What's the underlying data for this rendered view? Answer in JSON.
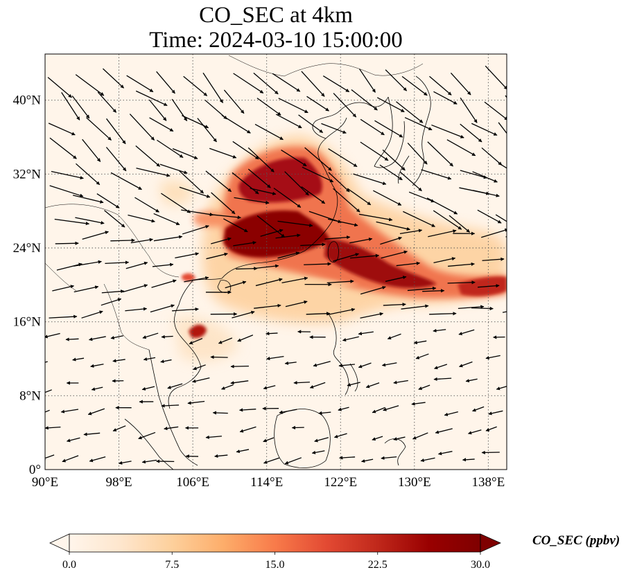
{
  "title": {
    "line1": "CO_SEC at 4km",
    "line2": "Time: 2024-03-10 15:00:00"
  },
  "map": {
    "lon_range": [
      90,
      140
    ],
    "lat_range": [
      0,
      45
    ],
    "lon_ticks": [
      {
        "value": 90,
        "label": "90°E"
      },
      {
        "value": 98,
        "label": "98°E"
      },
      {
        "value": 106,
        "label": "106°E"
      },
      {
        "value": 114,
        "label": "114°E"
      },
      {
        "value": 122,
        "label": "122°E"
      },
      {
        "value": 130,
        "label": "130°E"
      },
      {
        "value": 138,
        "label": "138°E"
      }
    ],
    "lat_ticks": [
      {
        "value": 0,
        "label": "0°"
      },
      {
        "value": 8,
        "label": "8°N"
      },
      {
        "value": 16,
        "label": "16°N"
      },
      {
        "value": 24,
        "label": "24°N"
      },
      {
        "value": 32,
        "label": "32°N"
      },
      {
        "value": 40,
        "label": "40°N"
      }
    ],
    "gridlines": true,
    "gridline_style": "dotted",
    "field_variable": "CO_SEC",
    "background_color": "#fff5ea",
    "overlay": "wind vectors",
    "colormap": "OrRd",
    "colors": {
      "low": "#fff5eb",
      "mid": "#fdae6b",
      "high": "#d7301f",
      "max": "#7f0000",
      "coastline": "#000000",
      "arrow": "#000000",
      "grid": "#555555"
    }
  },
  "colorbar": {
    "min": 0.0,
    "max": 30.0,
    "ticks": [
      "0.0",
      "7.5",
      "15.0",
      "22.5",
      "30.0"
    ],
    "units_label": "CO_SEC (ppbv)",
    "extend": "both",
    "stops": [
      "#fff5eb",
      "#fee6cd",
      "#fdd09c",
      "#fdad6a",
      "#f87b4a",
      "#e34a33",
      "#c0281b",
      "#990000",
      "#7f0000"
    ]
  }
}
